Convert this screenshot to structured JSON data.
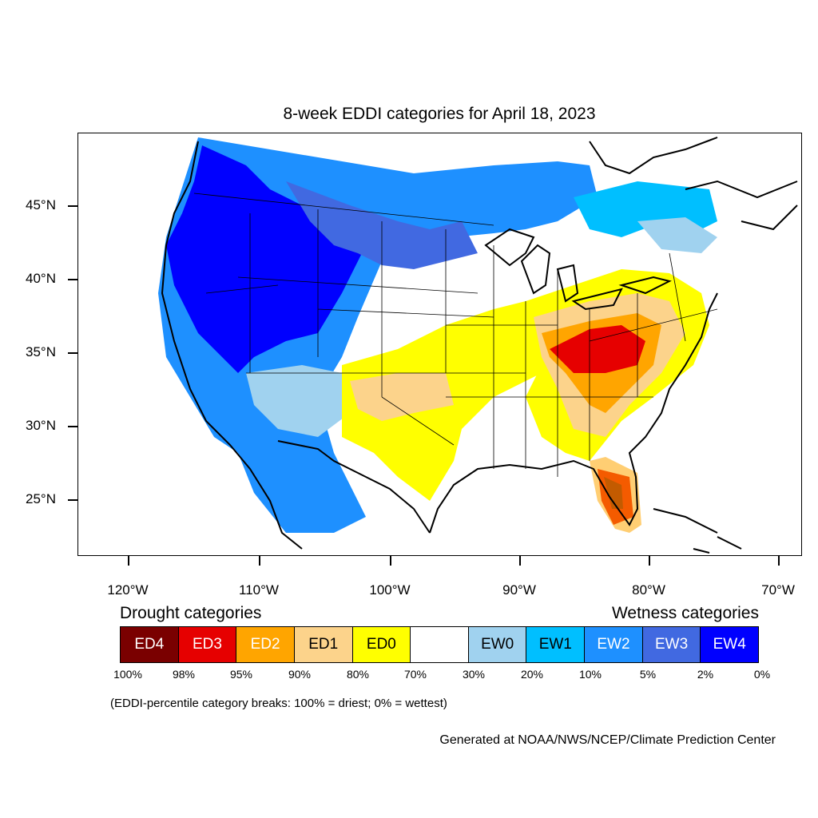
{
  "title": "8-week EDDI categories for April 18, 2023",
  "latitude_labels": [
    "45°N",
    "40°N",
    "35°N",
    "30°N",
    "25°N"
  ],
  "longitude_labels": [
    "120°W",
    "110°W",
    "100°W",
    "90°W",
    "80°W",
    "70°W"
  ],
  "legend": {
    "drought_heading": "Drought categories",
    "wetness_heading": "Wetness categories",
    "categories": [
      {
        "label": "ED4",
        "color": "#7a0000",
        "text_color": "#ffffff"
      },
      {
        "label": "ED3",
        "color": "#e60000",
        "text_color": "#ffffff"
      },
      {
        "label": "ED2",
        "color": "#ffa500",
        "text_color": "#ffffff"
      },
      {
        "label": "ED1",
        "color": "#fcd38b",
        "text_color": "#000000"
      },
      {
        "label": "ED0",
        "color": "#ffff00",
        "text_color": "#000000"
      },
      {
        "label": "",
        "color": "#ffffff",
        "text_color": "#000000"
      },
      {
        "label": "EW0",
        "color": "#a0d2ef",
        "text_color": "#000000"
      },
      {
        "label": "EW1",
        "color": "#00bfff",
        "text_color": "#000000"
      },
      {
        "label": "EW2",
        "color": "#1e90ff",
        "text_color": "#ffffff"
      },
      {
        "label": "EW3",
        "color": "#4169e1",
        "text_color": "#ffffff"
      },
      {
        "label": "EW4",
        "color": "#0000ff",
        "text_color": "#ffffff"
      }
    ],
    "percentiles": [
      "100%",
      "98%",
      "95%",
      "90%",
      "80%",
      "70%",
      "30%",
      "20%",
      "10%",
      "5%",
      "2%",
      "0%"
    ]
  },
  "note": "(EDDI-percentile category breaks: 100% = driest; 0% = wettest)",
  "credit": "Generated at NOAA/NWS/NCEP/Climate Prediction Center"
}
